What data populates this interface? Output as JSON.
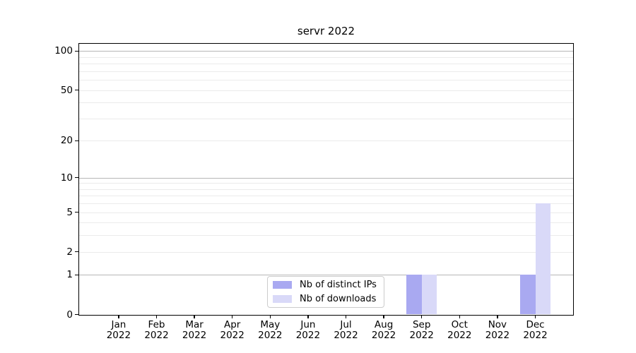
{
  "figure": {
    "title": "servr 2022",
    "background_color": "#ffffff"
  },
  "chart_data": {
    "type": "bar",
    "title": "servr 2022",
    "categories": [
      "Jan 2022",
      "Feb 2022",
      "Mar 2022",
      "Apr 2022",
      "May 2022",
      "Jun 2022",
      "Jul 2022",
      "Aug 2022",
      "Sep 2022",
      "Oct 2022",
      "Nov 2022",
      "Dec 2022"
    ],
    "series": [
      {
        "name": "Nb of distinct IPs",
        "color": "#a9a9f1",
        "values": [
          0,
          0,
          0,
          0,
          0,
          0,
          0,
          0,
          1,
          0,
          0,
          1
        ]
      },
      {
        "name": "Nb of downloads",
        "color": "#d9d9f8",
        "values": [
          0,
          0,
          0,
          0,
          0,
          0,
          0,
          0,
          1,
          0,
          0,
          6
        ]
      }
    ],
    "xlabel": "",
    "ylabel": "",
    "yscale": "log10(value+1)",
    "yticks": [
      0,
      1,
      2,
      5,
      10,
      20,
      50,
      100
    ],
    "ylim": [
      0,
      113
    ],
    "gridlines": {
      "major": [
        1,
        10,
        100
      ],
      "minor": [
        2,
        3,
        4,
        5,
        6,
        7,
        8,
        9,
        20,
        30,
        40,
        50,
        60,
        70,
        80,
        90
      ]
    },
    "grid": "horizontal",
    "legend_position": "lower center inside axes"
  },
  "legend": {
    "entries": [
      {
        "label": "Nb of distinct IPs",
        "color": "#a9a9f1"
      },
      {
        "label": "Nb of downloads",
        "color": "#d9d9f8"
      }
    ]
  }
}
